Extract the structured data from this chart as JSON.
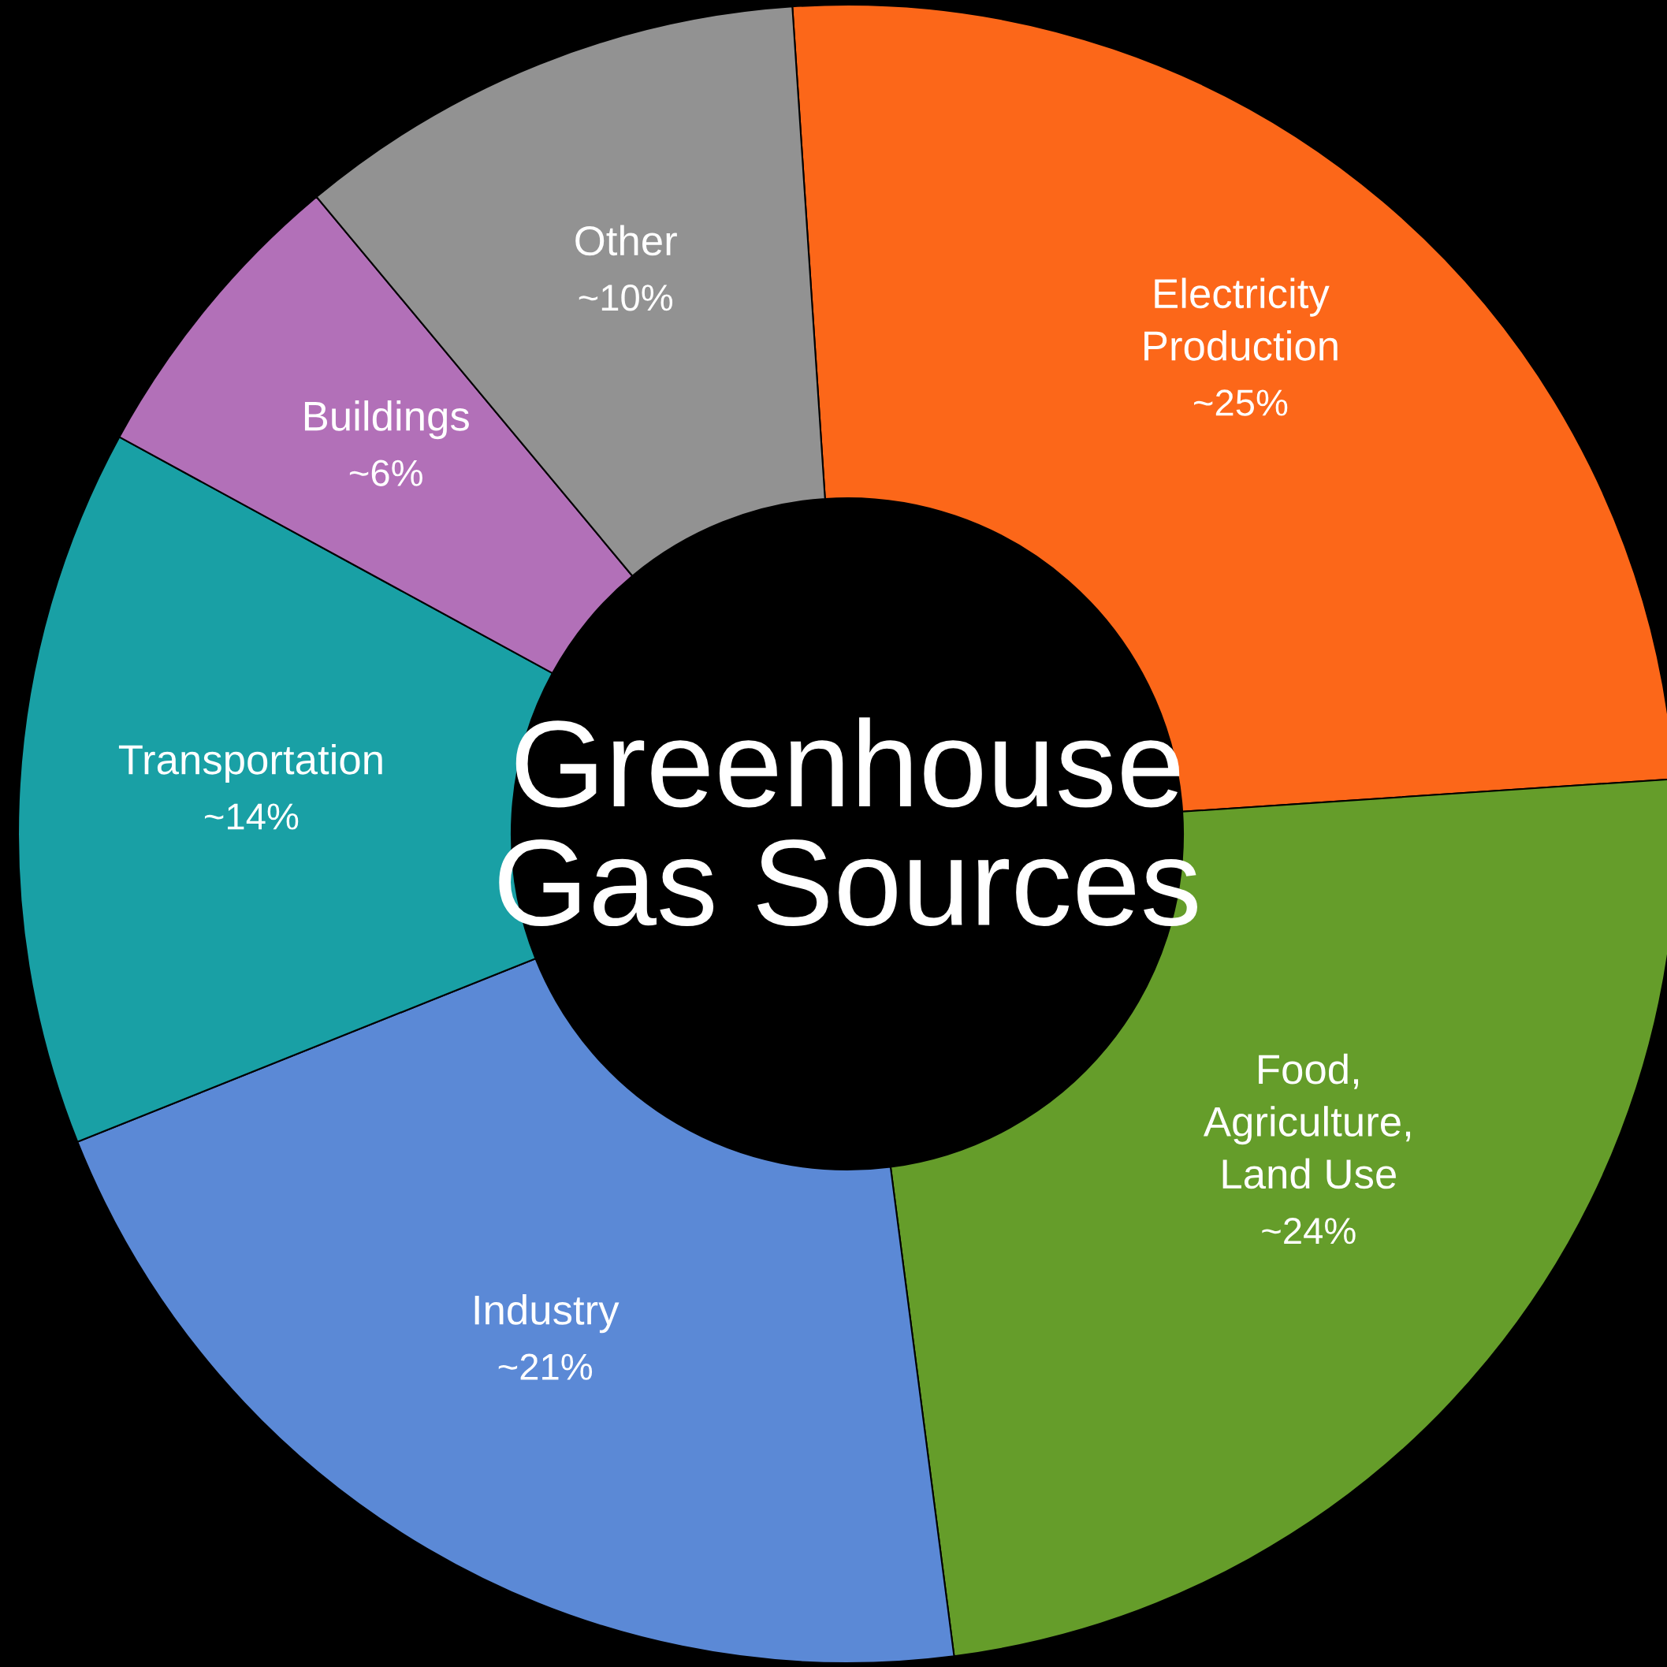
{
  "chart_data": {
    "type": "donut",
    "title": "Greenhouse\nGas Sources",
    "categories": [
      "Electricity\nProduction",
      "Food,\nAgriculture,\nLand Use",
      "Industry",
      "Transportation",
      "Buildings",
      "Other"
    ],
    "values": [
      25,
      24,
      21,
      14,
      6,
      10
    ],
    "value_labels": [
      "~25%",
      "~24%",
      "~21%",
      "~14%",
      "~6%",
      "~10%"
    ],
    "colors": [
      "#fc6719",
      "#659d2a",
      "#5b89d6",
      "#19a0a5",
      "#b270b8",
      "#929292"
    ],
    "legend": false
  }
}
